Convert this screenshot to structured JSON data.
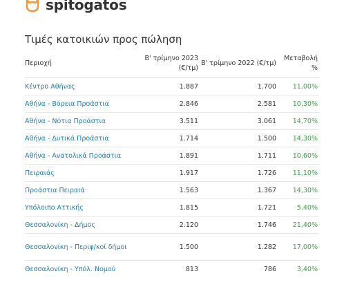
{
  "brand": {
    "name": "spitogatos",
    "color": "#f0953a"
  },
  "title": "Τιμές κατοικιών προς πώληση",
  "table": {
    "headers": [
      "Περιοχή",
      "Β' τρίμηνο 2023 (€/τμ)",
      "Β' τρίμηνο 2022 (€/τμ)",
      "Μεταβολή %"
    ],
    "rows": [
      {
        "region": "Κέντρο Αθήνας",
        "q2_2023": "1.887",
        "q2_2022": "1.700",
        "change": "11,00%"
      },
      {
        "region": "Αθήνα - Βόρεια Προάστια",
        "q2_2023": "2.846",
        "q2_2022": "2.581",
        "change": "10,30%"
      },
      {
        "region": "Αθήνα - Νότια Προάστια",
        "q2_2023": "3.511",
        "q2_2022": "3.061",
        "change": "14,70%"
      },
      {
        "region": "Αθήνα - Δυτικά Προάστια",
        "q2_2023": "1.714",
        "q2_2022": "1.500",
        "change": "14,30%"
      },
      {
        "region": "Αθήνα - Ανατολικά Προάστια",
        "q2_2023": "1.891",
        "q2_2022": "1.711",
        "change": "10,60%"
      },
      {
        "region": "Πειραιάς",
        "q2_2023": "1.917",
        "q2_2022": "1.726",
        "change": "11,10%"
      },
      {
        "region": "Προάστια Πειραιά",
        "q2_2023": "1.563",
        "q2_2022": "1.367",
        "change": "14,30%"
      },
      {
        "region": "Υπόλοιπο Αττικής",
        "q2_2023": "1.815",
        "q2_2022": "1.721",
        "change": "5,40%"
      },
      {
        "region": "Θεσσαλονίκη - Δήμος",
        "q2_2023": "2.120",
        "q2_2022": "1.746",
        "change": "21,40%"
      },
      {
        "region": "Θεσσαλονίκη - Περιφ/κοί δήμοι",
        "q2_2023": "1.500",
        "q2_2022": "1.282",
        "change": "17,00%"
      },
      {
        "region": "Θεσσαλονίκη - Υπόλ. Νομού",
        "q2_2023": "813",
        "q2_2022": "786",
        "change": "3,40%"
      }
    ]
  },
  "colors": {
    "region_link": "#1f7fb0",
    "positive_change": "#3fa048"
  }
}
